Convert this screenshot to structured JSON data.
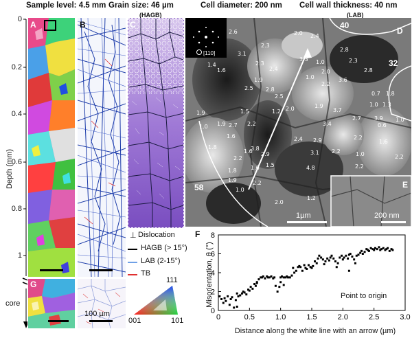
{
  "header": {
    "sample_level": "Sample level: 4.5 mm",
    "grain_size": "Grain size: 46 µm",
    "grain_size_sub": "(HAGB)",
    "cell_diameter": "Cell diameter: 200 nm",
    "cell_wall": "Cell wall thickness: 40 nm",
    "cell_wall_sub": "(LAB)"
  },
  "panels": {
    "A": "A",
    "B": "B",
    "C": "C",
    "D": "D",
    "E": "E",
    "F": "F",
    "G": "G"
  },
  "depth_axis": {
    "label": "Depth (mm)",
    "ticks": [
      "0",
      "0.2",
      "0.4",
      "0.6",
      "0.8",
      "1"
    ],
    "core_label": "core"
  },
  "legend": {
    "dislocation_symbol": "⊥",
    "dislocation": "Dislocation",
    "hagb": "HAGB (> 15°)",
    "lab": "LAB (2-15°)",
    "tb": "TB",
    "colors": {
      "hagb": "#000000",
      "lab": "#6fa0e6",
      "tb": "#e03030"
    }
  },
  "scalebars": {
    "b": "100 µm",
    "d": "1µm",
    "e": "200 nm"
  },
  "ipf": {
    "top": "111",
    "left": "001",
    "right": "101"
  },
  "diffraction": {
    "label": "[110]"
  },
  "tem_labels": {
    "big": [
      "40",
      "32",
      "58"
    ],
    "nums": [
      "2.6",
      "2.0",
      "2.4",
      "2.3",
      "3.1",
      "1.4",
      "1.6",
      "2.3",
      "2.4",
      "3.3",
      "1.0",
      "2.8",
      "2.3",
      "1.9",
      "1.0",
      "2.5",
      "2.8",
      "2.0",
      "3.6",
      "2.2",
      "2.8",
      "0.7",
      "1.8",
      "2.5",
      "1.9",
      "1.5",
      "1.2",
      "2.0",
      "1.9",
      "3.7",
      "1.3",
      "1.0",
      "1.9",
      "1.0",
      "2.7",
      "2.2",
      "1.6",
      "3.4",
      "2.7",
      "3.9",
      "0.6",
      "1.0",
      "1.6",
      "2.4",
      "2.2",
      "2.9",
      "1.8",
      "1.6",
      "2.2",
      "3.8",
      "2.9",
      "2.2",
      "1.0",
      "2.2",
      "1.8",
      "1.6",
      "1.5",
      "4.8",
      "2.2",
      "3.1",
      "1.9",
      "2.2",
      "1.2",
      "1.0",
      "2.0"
    ]
  },
  "chart_data": {
    "type": "scatter",
    "title": "",
    "xlabel": "Distance along the white line with an arrow (µm)",
    "ylabel": "Misorientation, θ (°)",
    "annotation": "Point to origin",
    "xlim": [
      0,
      3.0
    ],
    "ylim": [
      0,
      8
    ],
    "xticks": [
      "0",
      "0.5",
      "1.0",
      "1.5",
      "2.0",
      "2.5",
      "3.0"
    ],
    "yticks": [
      "0",
      "2",
      "4",
      "6",
      "8"
    ],
    "x": [
      0.02,
      0.05,
      0.08,
      0.1,
      0.12,
      0.15,
      0.18,
      0.2,
      0.22,
      0.25,
      0.28,
      0.3,
      0.32,
      0.35,
      0.38,
      0.4,
      0.42,
      0.45,
      0.48,
      0.5,
      0.52,
      0.55,
      0.58,
      0.6,
      0.62,
      0.65,
      0.68,
      0.7,
      0.72,
      0.75,
      0.78,
      0.8,
      0.82,
      0.85,
      0.88,
      0.9,
      0.92,
      0.95,
      0.98,
      1.0,
      1.02,
      1.05,
      1.08,
      1.1,
      1.12,
      1.15,
      1.18,
      1.2,
      1.22,
      1.25,
      1.28,
      1.3,
      1.32,
      1.35,
      1.38,
      1.4,
      1.42,
      1.45,
      1.48,
      1.5,
      1.52,
      1.55,
      1.58,
      1.6,
      1.62,
      1.65,
      1.68,
      1.7,
      1.72,
      1.75,
      1.78,
      1.8,
      1.82,
      1.85,
      1.88,
      1.9,
      1.92,
      1.95,
      1.98,
      2.0,
      2.02,
      2.05,
      2.08,
      2.1,
      2.12,
      2.15,
      2.18,
      2.2,
      2.22,
      2.25,
      2.28,
      2.3,
      2.32,
      2.35,
      2.38,
      2.4,
      2.42,
      2.45,
      2.48,
      2.5,
      2.52,
      2.55,
      2.58,
      2.6,
      2.62,
      2.65,
      2.68,
      2.7,
      2.72,
      2.75,
      2.78,
      2.8,
      0.3,
      1.0,
      1.05,
      0.62,
      2.1
    ],
    "y": [
      1.5,
      1.2,
      0.8,
      1.3,
      1.0,
      1.5,
      0.6,
      1.2,
      1.4,
      0.3,
      1.1,
      1.8,
      1.5,
      1.6,
      1.8,
      2.0,
      1.9,
      1.7,
      2.2,
      2.1,
      2.5,
      2.3,
      2.8,
      2.6,
      3.0,
      3.3,
      3.5,
      3.5,
      3.6,
      3.4,
      3.6,
      3.5,
      3.5,
      3.6,
      3.4,
      3.5,
      2.6,
      2.0,
      2.5,
      3.5,
      3.6,
      3.5,
      3.5,
      3.6,
      3.5,
      3.5,
      3.7,
      4.5,
      4.0,
      4.2,
      4.6,
      4.7,
      4.6,
      4.2,
      4.8,
      4.5,
      4.4,
      4.8,
      4.6,
      4.5,
      4.7,
      5.2,
      5.0,
      5.5,
      5.8,
      5.6,
      5.4,
      4.9,
      5.2,
      5.5,
      5.3,
      5.6,
      5.8,
      5.5,
      5.2,
      4.6,
      5.0,
      5.6,
      5.8,
      5.4,
      5.6,
      5.8,
      5.5,
      5.9,
      6.0,
      5.7,
      5.4,
      5.0,
      5.8,
      5.9,
      6.1,
      6.3,
      6.0,
      6.2,
      6.5,
      6.4,
      6.3,
      6.6,
      6.5,
      6.4,
      6.6,
      6.5,
      6.7,
      6.4,
      6.5,
      6.6,
      6.4,
      6.5,
      6.6,
      6.3,
      6.5,
      6.4,
      0.4,
      3.0,
      2.7,
      2.9,
      4.2
    ]
  }
}
